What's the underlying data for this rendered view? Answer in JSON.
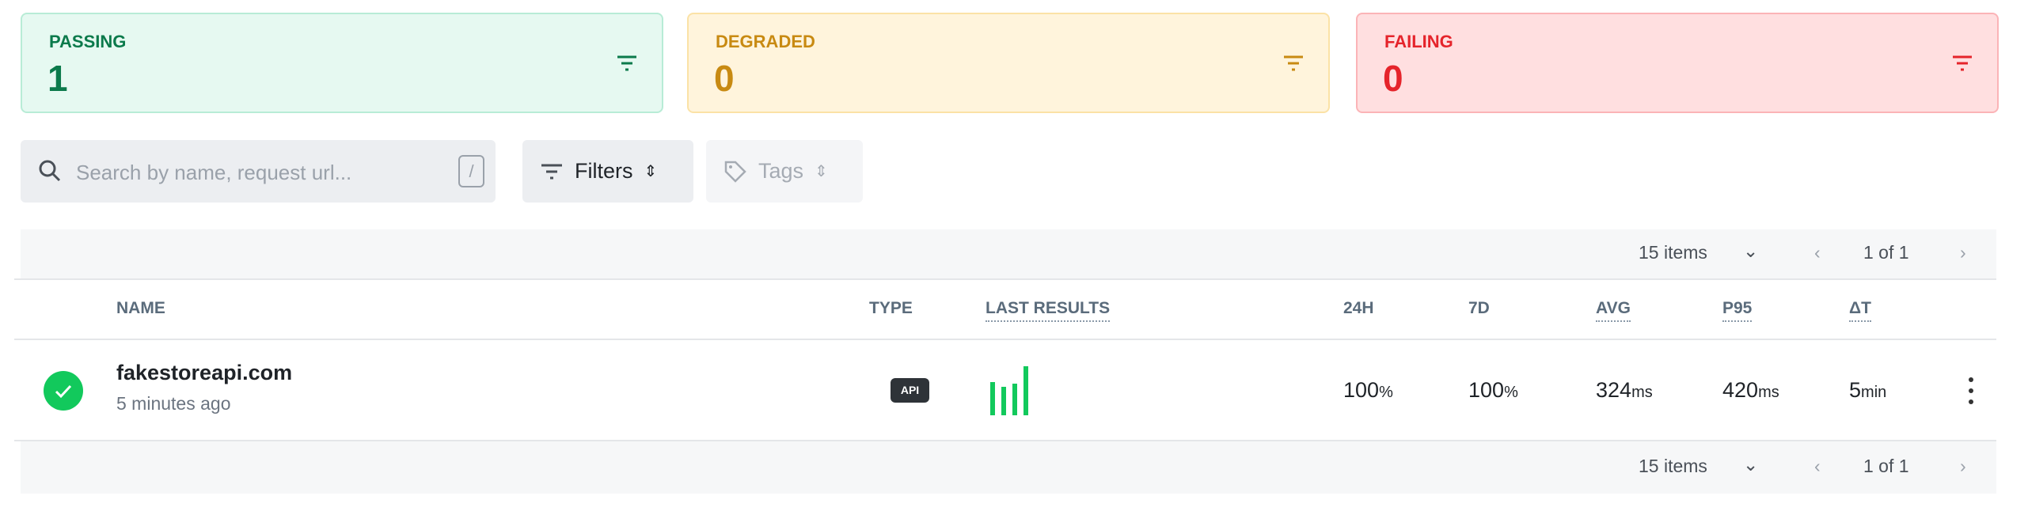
{
  "summary": {
    "passing": {
      "label": "PASSING",
      "count": "1"
    },
    "degraded": {
      "label": "DEGRADED",
      "count": "0"
    },
    "failing": {
      "label": "FAILING",
      "count": "0"
    },
    "colors": {
      "passing": "#0b7a4b",
      "degraded": "#c88a12",
      "failing": "#e5242b"
    }
  },
  "toolbar": {
    "search_placeholder": "Search by name, request url...",
    "search_shortcut": "/",
    "filters_label": "Filters",
    "tags_label": "Tags"
  },
  "pagination": {
    "items_label": "15 items",
    "page_label": "1 of 1"
  },
  "table": {
    "columns": {
      "name": "NAME",
      "type": "TYPE",
      "last_results": "LAST RESULTS",
      "h24": "24H",
      "d7": "7D",
      "avg": "AVG",
      "p95": "P95",
      "dt": "ΔT"
    },
    "rows": [
      {
        "status": "passing",
        "name": "fakestoreapi.com",
        "subtitle": "5 minutes ago",
        "type": "API",
        "last_results": [
          "pass",
          "pass",
          "pass",
          "pass"
        ],
        "h24": "100",
        "h24_unit": "%",
        "d7": "100",
        "d7_unit": "%",
        "avg": "324",
        "avg_unit": "ms",
        "p95": "420",
        "p95_unit": "ms",
        "dt": "5",
        "dt_unit": "min"
      }
    ]
  }
}
